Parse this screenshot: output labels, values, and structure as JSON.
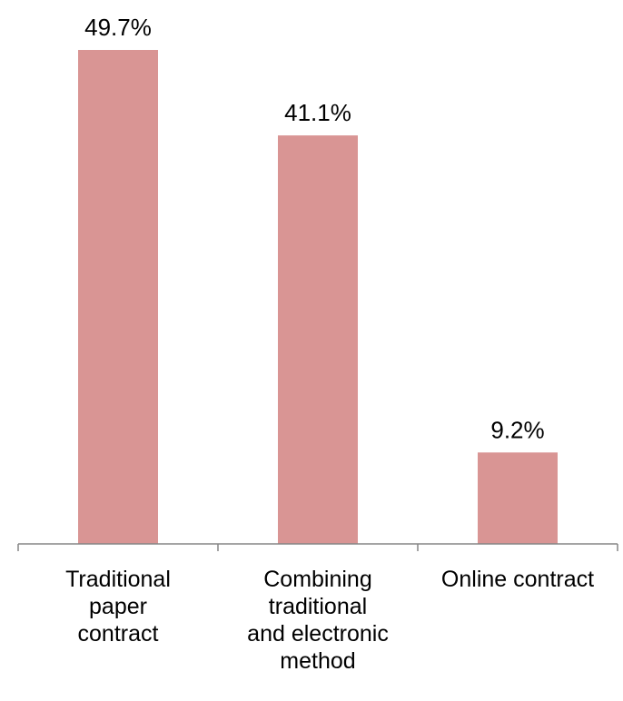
{
  "chart_data": {
    "type": "bar",
    "categories": [
      "Traditional paper contract",
      "Combining traditional and electronic method",
      "Online contract"
    ],
    "category_label_lines": [
      [
        "Traditional",
        "paper",
        "contract"
      ],
      [
        "Combining",
        "traditional",
        "and electronic",
        "method"
      ],
      [
        "Online contract"
      ]
    ],
    "values": [
      49.7,
      41.1,
      9.2
    ],
    "data_labels": [
      "49.7%",
      "41.1%",
      "9.2%"
    ],
    "unit": "%",
    "ylim": [
      0,
      49.7
    ],
    "title": "",
    "xlabel": "",
    "ylabel": "",
    "grid": false,
    "legend": "none",
    "colors": {
      "bar": "#d99594",
      "axis": "#868686",
      "text": "#000000"
    }
  }
}
